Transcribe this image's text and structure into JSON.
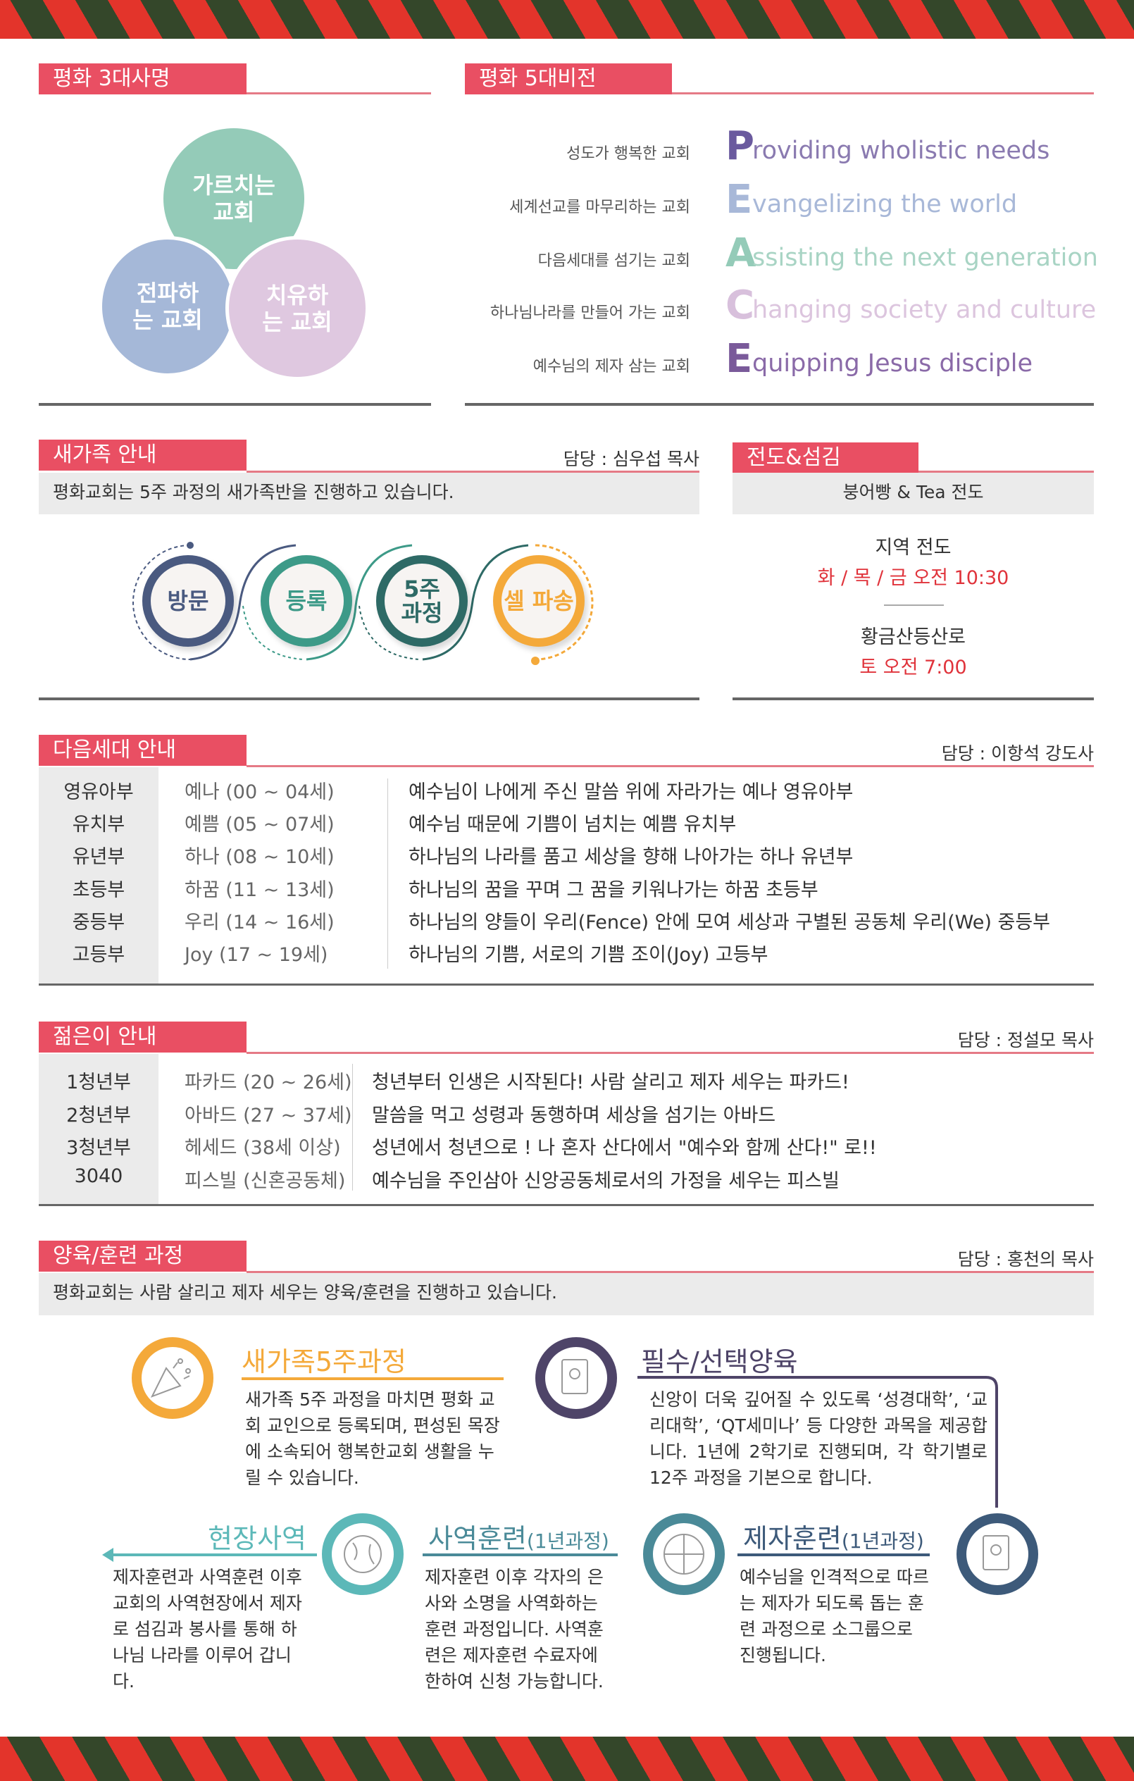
{
  "mission": {
    "title": "평화 3대사명",
    "circles": [
      {
        "label": "가르치는 교회",
        "color": "#94cbb8"
      },
      {
        "label": "전파하는 교회",
        "color": "#a5b8d8"
      },
      {
        "label": "치유하는 교회",
        "color": "#dfc8e0"
      }
    ]
  },
  "vision": {
    "title": "평화 5대비전",
    "items": [
      {
        "ko": "성도가 행복한 교회",
        "letter": "P",
        "rest": "roviding wholistic needs",
        "color": "#6a5a9e",
        "text_color": "#8a7ab0"
      },
      {
        "ko": "세계선교를 마무리하는 교회",
        "letter": "E",
        "rest": "vangelizing the world",
        "color": "#a8b8d8",
        "text_color": "#a8b8d8"
      },
      {
        "ko": "다음세대를 섬기는 교회",
        "letter": "A",
        "rest": "ssisting the next generation",
        "color": "#94cbb8",
        "text_color": "#a8d4c4"
      },
      {
        "ko": "하나님나라를 만들어 가는 교회",
        "letter": "C",
        "rest": "hanging society and culture",
        "color": "#d8c0dc",
        "text_color": "#dcc5de"
      },
      {
        "ko": "예수님의 제자 삼는 교회",
        "letter": "E",
        "rest": "quipping Jesus disciple",
        "color": "#7a5a9a",
        "text_color": "#8a6aa8"
      }
    ]
  },
  "newfamily": {
    "title": "새가족 안내",
    "responsible": "담당 : 심우섭 목사",
    "desc": "평화교회는 5주 과정의 새가족반을 진행하고 있습니다.",
    "steps": [
      {
        "label": "방문",
        "color": "#4a5a80"
      },
      {
        "label": "등록",
        "color": "#3d9a88"
      },
      {
        "label": "5주 과정",
        "color": "#2e6a66"
      },
      {
        "label": "셀 파송",
        "color": "#f4a93a"
      }
    ]
  },
  "evangelism": {
    "title": "전도&섬김",
    "box": "붕어빵 & Tea 전도",
    "local_label": "지역 전도",
    "local_time": "화 / 목 / 금 오전 10:30",
    "trail_label": "황금산등산로",
    "trail_time": "토 오전 7:00"
  },
  "nextgen": {
    "title": "다음세대 안내",
    "responsible": "담당 : 이항석 강도사",
    "rows": [
      {
        "dept": "영유아부",
        "age": "예나 (00 ~ 04세)",
        "desc": "예수님이 나에게 주신 말씀 위에 자라가는 예나 영유아부"
      },
      {
        "dept": "유치부",
        "age": "예쁨 (05 ~ 07세)",
        "desc": "예수님 때문에 기쁨이 넘치는 예쁨 유치부"
      },
      {
        "dept": "유년부",
        "age": "하나 (08 ~ 10세)",
        "desc": "하나님의 나라를 품고 세상을 향해 나아가는 하나 유년부"
      },
      {
        "dept": "초등부",
        "age": "하꿈 (11 ~ 13세)",
        "desc": "하나님의 꿈을 꾸며 그 꿈을 키워나가는 하꿈 초등부"
      },
      {
        "dept": "중등부",
        "age": "우리 (14 ~ 16세)",
        "desc": "하나님의 양들이 우리(Fence) 안에 모여 세상과 구별된 공동체 우리(We) 중등부"
      },
      {
        "dept": "고등부",
        "age": "Joy (17 ~ 19세)",
        "desc": "하나님의 기쁨, 서로의 기쁨 조이(Joy) 고등부"
      }
    ]
  },
  "youth": {
    "title": "젊은이 안내",
    "responsible": "담당 : 정설모 목사",
    "rows": [
      {
        "dept": "1청년부",
        "age": "파카드 (20 ~ 26세)",
        "desc": "청년부터 인생은 시작된다! 사람 살리고 제자 세우는 파카드!"
      },
      {
        "dept": "2청년부",
        "age": "아바드 (27 ~ 37세)",
        "desc": "말씀을 먹고 성령과 동행하며 세상을 섬기는 아바드"
      },
      {
        "dept": "3청년부",
        "age": "헤세드 (38세 이상)",
        "desc": "성년에서 청년으로 ! 나 혼자 산다에서 \"예수와 함께 산다!\" 로!!"
      },
      {
        "dept": "3040",
        "age": "피스빌 (신혼공동체)",
        "desc": "예수님을 주인삼아 신앙공동체로서의 가정을 세우는 피스빌"
      }
    ]
  },
  "training": {
    "title": "양육/훈련 과정",
    "responsible": "담당 : 홍천의 목사",
    "desc": "평화교회는 사람 살리고 제자 세우는 양육/훈련을 진행하고 있습니다.",
    "items": [
      {
        "title": "새가족5주과정",
        "sub": "",
        "icon": "party-popper-icon",
        "color": "#f4a93a",
        "text": "새가족 5주 과정을 마치면 평화 교회 교인으로 등록되며, 편성된 목장에 소속되어 행복한교회 생활을 누릴 수 있습니다."
      },
      {
        "title": "필수/선택양육",
        "sub": "",
        "icon": "book-icon",
        "color": "#4e4468",
        "text": "신앙이 더욱 깊어질 수 있도록 ‘성경대학’, ‘교리대학’, ‘QT세미나’ 등 다양한 과목을 제공합니다. 1년에 2학기로 진행되며, 각 학기별로 12주 과정을 기본으로 합니다."
      },
      {
        "title": "제자훈련",
        "sub": "(1년과정)",
        "icon": "book-icon",
        "color": "#3d5a7a",
        "text": "예수님을 인격적으로 따르는 제자가 되도록 돕는 훈련 과정으로 소그룹으로 진행됩니다."
      },
      {
        "title": "사역훈련",
        "sub": "(1년과정)",
        "icon": "globe-people-icon",
        "color": "#4a8a98",
        "text": "제자훈련 이후 각자의 은사와 소명을 사역화하는 훈련 과정입니다. 사역훈련은 제자훈련 수료자에 한하여 신청 가능합니다."
      },
      {
        "title": "현장사역",
        "sub": "",
        "icon": "globe-icon",
        "color": "#5cb8b8",
        "text": "제자훈련과 사역훈련 이후 교회의 사역현장에서 제자로 섬김과 봉사를 통해 하나님 나라를 이루어 갑니다."
      }
    ]
  }
}
